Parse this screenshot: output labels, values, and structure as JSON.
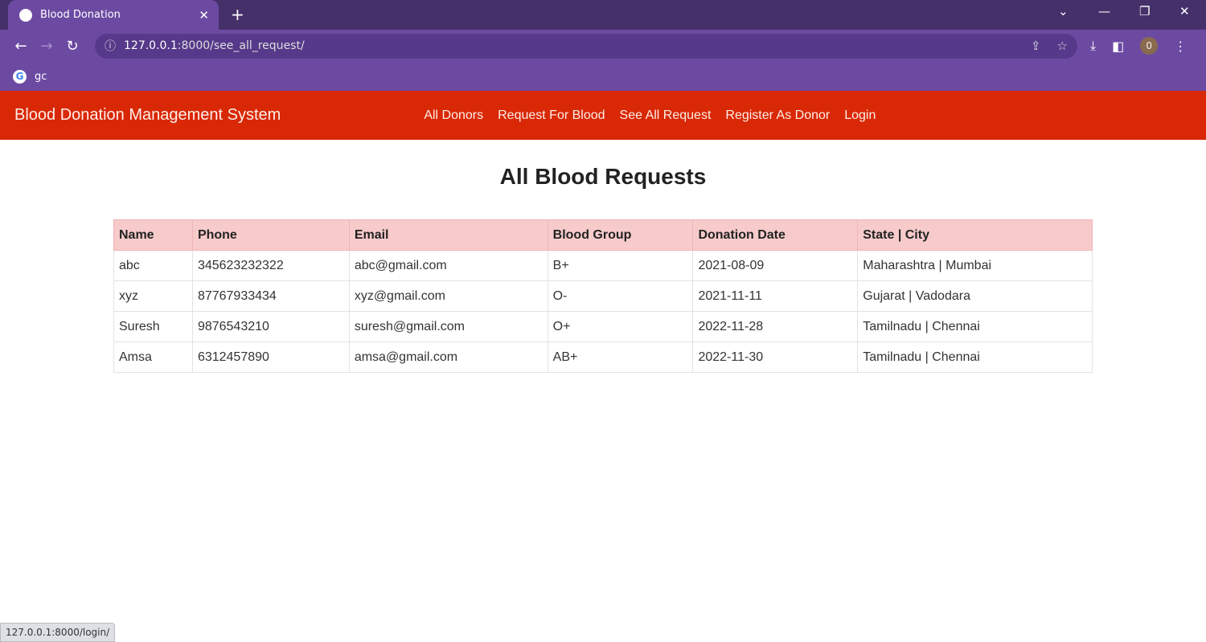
{
  "browser": {
    "tab_title": "Blood Donation",
    "url_host": "127.0.0.1",
    "url_rest": ":8000/see_all_request/",
    "bookmark": "gc",
    "profile_initial": "0",
    "status_url": "127.0.0.1:8000/login/"
  },
  "navbar": {
    "brand": "Blood Donation Management System",
    "links": [
      "All Donors",
      "Request For Blood",
      "See All Request",
      "Register As Donor",
      "Login"
    ],
    "color": "#d92806"
  },
  "page": {
    "title": "All Blood Requests"
  },
  "table": {
    "headers": [
      "Name",
      "Phone",
      "Email",
      "Blood Group",
      "Donation Date",
      "State | City"
    ],
    "rows": [
      [
        "abc",
        "345623232322",
        "abc@gmail.com",
        "B+",
        "2021-08-09",
        "Maharashtra | Mumbai"
      ],
      [
        "xyz",
        "87767933434",
        "xyz@gmail.com",
        "O-",
        "2021-11-11",
        "Gujarat | Vadodara"
      ],
      [
        "Suresh",
        "9876543210",
        "suresh@gmail.com",
        "O+",
        "2022-11-28",
        "Tamilnadu | Chennai"
      ],
      [
        "Amsa",
        "6312457890",
        "amsa@gmail.com",
        "AB+",
        "2022-11-30",
        "Tamilnadu | Chennai"
      ]
    ]
  }
}
